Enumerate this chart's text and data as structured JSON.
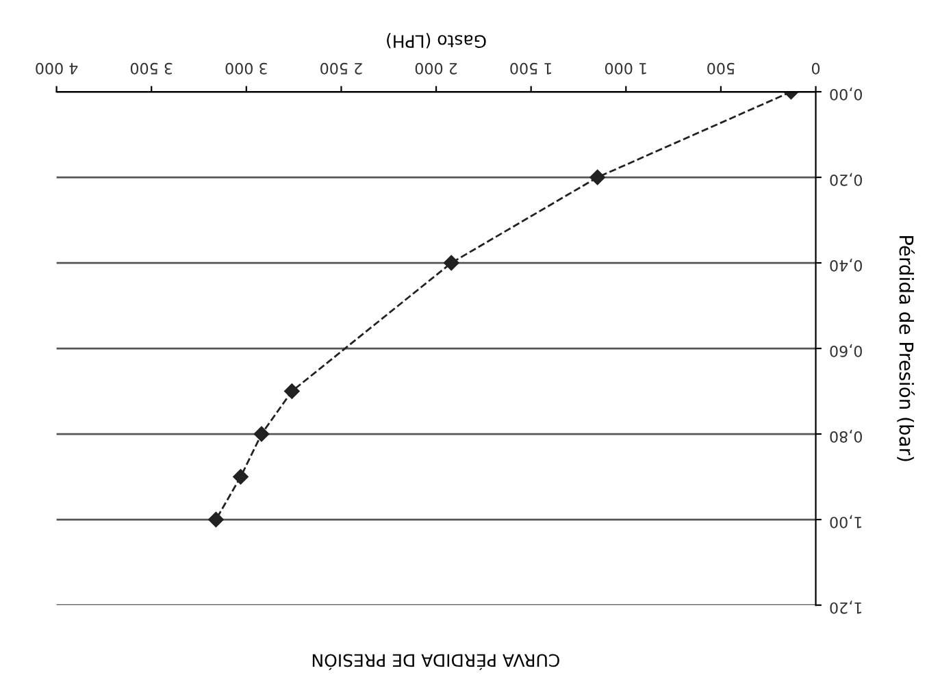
{
  "chart_data": {
    "type": "line",
    "title": "CURVA PÉRDIDA DE PRESIÓN",
    "xlabel": "Gasto (LPH)",
    "ylabel": "Pérdida de Presión (bar)",
    "x": [
      130,
      1150,
      1920,
      2760,
      2920,
      3030,
      3160
    ],
    "series": [
      {
        "color": "#222222",
        "values": [
          0,
          0.2,
          0.4,
          0.7,
          0.8,
          0.9,
          1.0
        ]
      }
    ],
    "xlim": [
      4000,
      0
    ],
    "xticks": [
      {
        "value": 4000,
        "label": "4 000"
      },
      {
        "value": 3500,
        "label": "3 500"
      },
      {
        "value": 3000,
        "label": "3 000"
      },
      {
        "value": 2500,
        "label": "2 500"
      },
      {
        "value": 2000,
        "label": "2 000"
      },
      {
        "value": 1500,
        "label": "1 500"
      },
      {
        "value": 1000,
        "label": "1 000"
      },
      500,
      0
    ],
    "ylim": [
      1.2,
      0
    ],
    "yticks": [
      {
        "value": 0,
        "label": "0,00"
      },
      {
        "value": 0.2,
        "label": "0,20"
      },
      {
        "value": 0.4,
        "label": "0,40"
      },
      {
        "value": 0.6,
        "label": "0,60"
      },
      {
        "value": 0.8,
        "label": "0,80"
      },
      {
        "value": 1.0,
        "label": "1,00"
      },
      {
        "value": 1.2,
        "label": "1,20"
      }
    ],
    "grid": "y",
    "marker": "diamond",
    "line_style": "dashed",
    "legend": false
  }
}
